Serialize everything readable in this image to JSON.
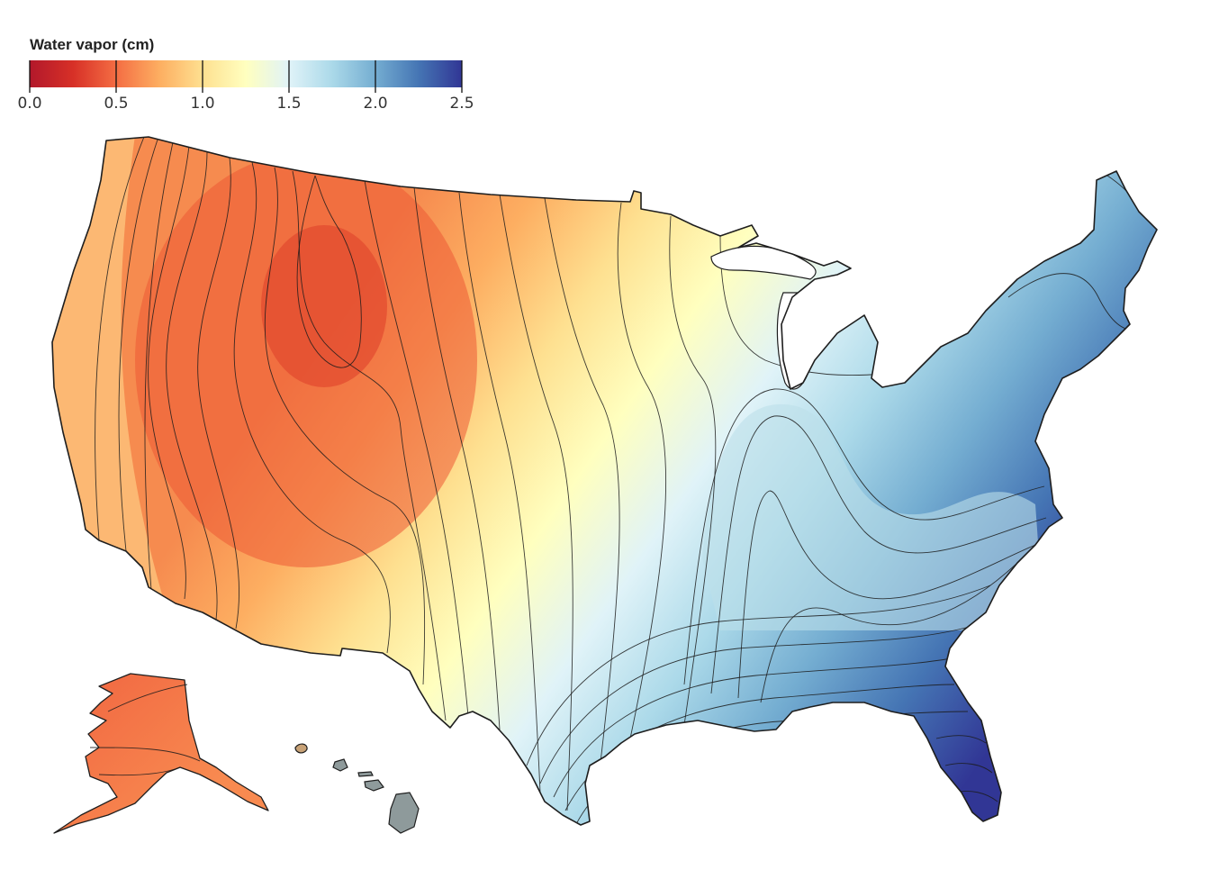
{
  "legend": {
    "title": "Water vapor (cm)",
    "ticks": [
      "0.0",
      "0.5",
      "1.0",
      "1.5",
      "2.0",
      "2.5"
    ],
    "domain": [
      0,
      2.5
    ],
    "scheme": [
      "#b2182b",
      "#d73027",
      "#f46d43",
      "#fdae61",
      "#fee090",
      "#ffffbf",
      "#e0f3f8",
      "#abd9e9",
      "#74add1",
      "#4575b4",
      "#313695"
    ]
  },
  "map": {
    "regions": [
      "contiguous-us",
      "alaska",
      "hawaii"
    ],
    "contour_interval_cm": 0.1,
    "hawaii_fill": "#8e9a9b",
    "great_lakes_fill": "#ffffff",
    "border_color": "#1e1e1e"
  }
}
